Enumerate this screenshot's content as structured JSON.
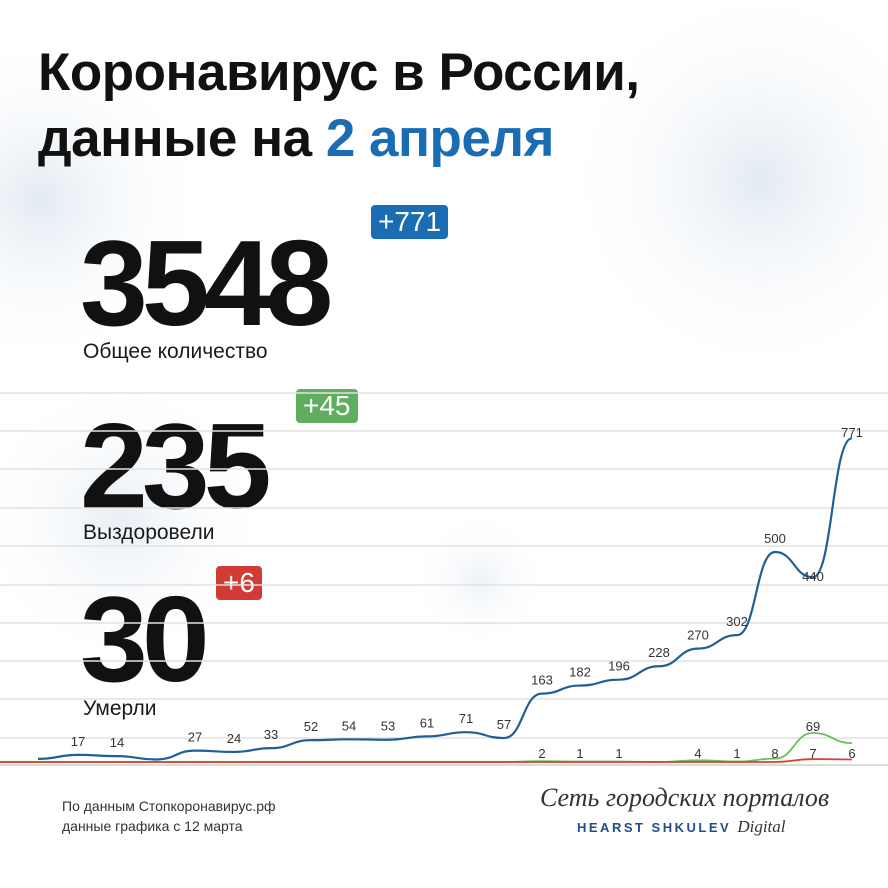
{
  "header": {
    "title_line1": "Коронавирус в России,",
    "title_line2_prefix": "данные на ",
    "title_line2_date": "2 апреля"
  },
  "stats": {
    "total": {
      "value": "3548",
      "delta": "+771",
      "label": "Общее количество"
    },
    "recovered": {
      "value": "235",
      "delta": "+45",
      "label": "Выздоровели"
    },
    "deaths": {
      "value": "30",
      "delta": "+6",
      "label": "Умерли"
    }
  },
  "colors": {
    "accent_blue": "#1b6db3",
    "badge_green": "#5fae5f",
    "badge_red": "#d23a35",
    "line_cases": "#1f5f96",
    "line_recovered": "#6cbf5e",
    "line_deaths": "#d9432f"
  },
  "chart_data": {
    "type": "line",
    "series": [
      {
        "key": "cases",
        "values": [
          17,
          14,
          6,
          27,
          24,
          33,
          52,
          54,
          53,
          61,
          71,
          57,
          163,
          182,
          196,
          228,
          270,
          302,
          500,
          440,
          771
        ],
        "labels": [
          "17",
          "14",
          "",
          "27",
          "24",
          "33",
          "52",
          "54",
          "53",
          "61",
          "71",
          "57",
          "163",
          "182",
          "196",
          "228",
          "270",
          "302",
          "500",
          "440",
          "771"
        ]
      },
      {
        "key": "recovered",
        "values": [
          0,
          0,
          0,
          0,
          0,
          0,
          0,
          0,
          0,
          0,
          0,
          0,
          2,
          1,
          1,
          0,
          4,
          1,
          8,
          69,
          45
        ],
        "labels": [
          "",
          "",
          "",
          "",
          "",
          "",
          "",
          "",
          "",
          "",
          "",
          "",
          "2",
          "1",
          "1",
          "",
          "4",
          "1",
          "8",
          "69",
          ""
        ]
      },
      {
        "key": "deaths",
        "values": [
          0,
          0,
          0,
          0,
          0,
          0,
          0,
          0,
          0,
          0,
          0,
          0,
          0,
          0,
          0,
          0,
          0,
          0,
          0,
          7,
          6
        ],
        "labels": [
          "",
          "",
          "",
          "",
          "",
          "",
          "",
          "",
          "",
          "",
          "",
          "",
          "",
          "",
          "",
          "",
          "",
          "",
          "",
          "7",
          "6"
        ]
      }
    ],
    "grid": true
  },
  "footer": {
    "source_line1": "По данным Стопкоронавирус.рф",
    "source_line2": "данные графика с 12 марта",
    "brand_script": "Сеть городских порталов",
    "brand_sub": "HEARST SHKULEV",
    "brand_digital": "Digital"
  }
}
